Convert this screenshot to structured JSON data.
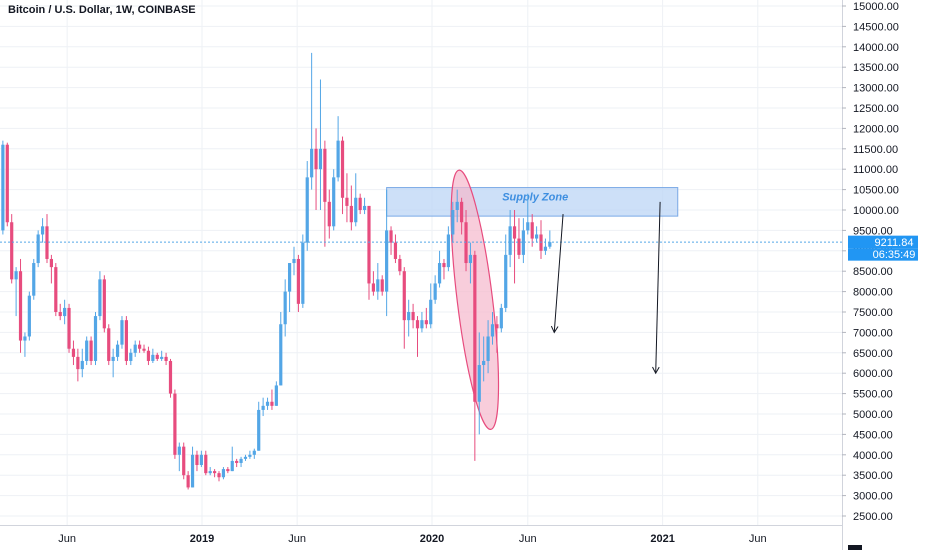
{
  "header": {
    "title": "Bitcoin / U.S. Dollar, 1W, COINBASE"
  },
  "price_axis": {
    "labels": [
      "15000.00",
      "14500.00",
      "14000.00",
      "13500.00",
      "13000.00",
      "12500.00",
      "12000.00",
      "11500.00",
      "11000.00",
      "10500.00",
      "10000.00",
      "9500.00",
      "9000.00",
      "8500.00",
      "8000.00",
      "7500.00",
      "7000.00",
      "6500.00",
      "6000.00",
      "5500.00",
      "5000.00",
      "4500.00",
      "4000.00",
      "3500.00",
      "3000.00",
      "2500.00"
    ],
    "last_price": "9211.84",
    "countdown": "06:35:49",
    "last_price_color": "#2196f3"
  },
  "time_axis": {
    "labels": [
      "Jun",
      "2019",
      "Jun",
      "2020",
      "Jun",
      "2021",
      "Jun"
    ]
  },
  "annotations": {
    "supply_zone_label": "Supply Zone"
  },
  "colors": {
    "up": "#53a6e6",
    "down": "#e74c7e",
    "zone": "#bcd6f5",
    "ellipse": "#f5b8cc"
  },
  "chart_data": {
    "type": "candlestick",
    "title": "Bitcoin / U.S. Dollar, 1W, COINBASE",
    "ylim": [
      2150,
      15100
    ],
    "y_ticks": [
      2500,
      3000,
      3500,
      4000,
      4500,
      5000,
      5500,
      6000,
      6500,
      7000,
      7500,
      8000,
      8500,
      9000,
      9500,
      10000,
      10500,
      11000,
      11500,
      12000,
      12500,
      13000,
      13500,
      14000,
      14500,
      15000
    ],
    "x_ticks": [
      {
        "label": "Jun",
        "date": "2018-06"
      },
      {
        "label": "2019",
        "date": "2019-01"
      },
      {
        "label": "Jun",
        "date": "2019-06"
      },
      {
        "label": "2020",
        "date": "2020-01"
      },
      {
        "label": "Jun",
        "date": "2020-06"
      },
      {
        "label": "2021",
        "date": "2021-01"
      },
      {
        "label": "Jun",
        "date": "2021-06"
      }
    ],
    "last_price": 9211.84,
    "supply_zone": {
      "from": "2019-10-21",
      "to": "2021-01-25",
      "low": 9850,
      "high": 10550,
      "label": "Supply Zone"
    },
    "highlight_ellipse": {
      "center_date": "2020-03-09",
      "center_price": 7000,
      "from_date": "2020-02-10",
      "to_date": "2020-04-06",
      "high": 11000,
      "low": 4600
    },
    "projections": [
      {
        "from_date": "2020-07-27",
        "from_price": 9900,
        "to_date": "2020-07-13",
        "to_price": 7000
      },
      {
        "from_date": "2020-12-28",
        "from_price": 10200,
        "to_date": "2020-12-21",
        "to_price": 6000
      }
    ],
    "candles": [
      {
        "date": "2018-02-19",
        "open": 9500,
        "high": 11700,
        "low": 9400,
        "close": 11600
      },
      {
        "date": "2018-02-26",
        "open": 11600,
        "high": 11650,
        "low": 9600,
        "close": 9700
      },
      {
        "date": "2018-03-05",
        "open": 9700,
        "high": 9900,
        "low": 8200,
        "close": 8300
      },
      {
        "date": "2018-03-12",
        "open": 8300,
        "high": 8600,
        "low": 7400,
        "close": 8500
      },
      {
        "date": "2018-03-19",
        "open": 8500,
        "high": 8800,
        "low": 6500,
        "close": 6800
      },
      {
        "date": "2018-03-26",
        "open": 6800,
        "high": 7000,
        "low": 6400,
        "close": 6900
      },
      {
        "date": "2018-04-02",
        "open": 6900,
        "high": 8000,
        "low": 6800,
        "close": 7900
      },
      {
        "date": "2018-04-09",
        "open": 7900,
        "high": 8800,
        "low": 7800,
        "close": 8700
      },
      {
        "date": "2018-04-16",
        "open": 8700,
        "high": 9500,
        "low": 8600,
        "close": 9400
      },
      {
        "date": "2018-04-23",
        "open": 9400,
        "high": 9800,
        "low": 9200,
        "close": 9600
      },
      {
        "date": "2018-04-30",
        "open": 9600,
        "high": 9900,
        "low": 8700,
        "close": 8800
      },
      {
        "date": "2018-05-07",
        "open": 8800,
        "high": 8900,
        "low": 8200,
        "close": 8600
      },
      {
        "date": "2018-05-14",
        "open": 8600,
        "high": 8700,
        "low": 7400,
        "close": 7500
      },
      {
        "date": "2018-05-21",
        "open": 7500,
        "high": 7700,
        "low": 7300,
        "close": 7400
      },
      {
        "date": "2018-05-28",
        "open": 7400,
        "high": 7800,
        "low": 7200,
        "close": 7600
      },
      {
        "date": "2018-06-04",
        "open": 7600,
        "high": 7700,
        "low": 6500,
        "close": 6600
      },
      {
        "date": "2018-06-11",
        "open": 6600,
        "high": 6800,
        "low": 6200,
        "close": 6400
      },
      {
        "date": "2018-06-18",
        "open": 6400,
        "high": 6600,
        "low": 5800,
        "close": 6100
      },
      {
        "date": "2018-06-25",
        "open": 6100,
        "high": 6600,
        "low": 5900,
        "close": 6300
      },
      {
        "date": "2018-07-02",
        "open": 6300,
        "high": 6900,
        "low": 6200,
        "close": 6800
      },
      {
        "date": "2018-07-09",
        "open": 6800,
        "high": 6900,
        "low": 6200,
        "close": 6300
      },
      {
        "date": "2018-07-16",
        "open": 6300,
        "high": 7500,
        "low": 6200,
        "close": 7400
      },
      {
        "date": "2018-07-23",
        "open": 7400,
        "high": 8500,
        "low": 7300,
        "close": 8300
      },
      {
        "date": "2018-07-30",
        "open": 8300,
        "high": 8400,
        "low": 7000,
        "close": 7100
      },
      {
        "date": "2018-08-06",
        "open": 7100,
        "high": 7200,
        "low": 6200,
        "close": 6300
      },
      {
        "date": "2018-08-13",
        "open": 6300,
        "high": 6600,
        "low": 5900,
        "close": 6400
      },
      {
        "date": "2018-08-20",
        "open": 6400,
        "high": 6800,
        "low": 6300,
        "close": 6700
      },
      {
        "date": "2018-08-27",
        "open": 6700,
        "high": 7400,
        "low": 6600,
        "close": 7300
      },
      {
        "date": "2018-09-03",
        "open": 7300,
        "high": 7400,
        "low": 6200,
        "close": 6300
      },
      {
        "date": "2018-09-10",
        "open": 6300,
        "high": 6600,
        "low": 6200,
        "close": 6500
      },
      {
        "date": "2018-09-17",
        "open": 6500,
        "high": 6800,
        "low": 6400,
        "close": 6700
      },
      {
        "date": "2018-09-24",
        "open": 6700,
        "high": 6800,
        "low": 6500,
        "close": 6600
      },
      {
        "date": "2018-10-01",
        "open": 6600,
        "high": 6700,
        "low": 6500,
        "close": 6550
      },
      {
        "date": "2018-10-08",
        "open": 6550,
        "high": 6650,
        "low": 6200,
        "close": 6300
      },
      {
        "date": "2018-10-15",
        "open": 6300,
        "high": 6600,
        "low": 6250,
        "close": 6450
      },
      {
        "date": "2018-10-22",
        "open": 6450,
        "high": 6500,
        "low": 6300,
        "close": 6350
      },
      {
        "date": "2018-10-29",
        "open": 6350,
        "high": 6550,
        "low": 6300,
        "close": 6400
      },
      {
        "date": "2018-11-05",
        "open": 6400,
        "high": 6500,
        "low": 6200,
        "close": 6300
      },
      {
        "date": "2018-11-12",
        "open": 6300,
        "high": 6350,
        "low": 5400,
        "close": 5500
      },
      {
        "date": "2018-11-19",
        "open": 5500,
        "high": 5600,
        "low": 3900,
        "close": 4000
      },
      {
        "date": "2018-11-26",
        "open": 4000,
        "high": 4300,
        "low": 3600,
        "close": 4200
      },
      {
        "date": "2018-12-03",
        "open": 4200,
        "high": 4300,
        "low": 3400,
        "close": 3500
      },
      {
        "date": "2018-12-10",
        "open": 3500,
        "high": 3600,
        "low": 3150,
        "close": 3200
      },
      {
        "date": "2018-12-17",
        "open": 3200,
        "high": 4200,
        "low": 3200,
        "close": 4000
      },
      {
        "date": "2018-12-24",
        "open": 4000,
        "high": 4100,
        "low": 3600,
        "close": 3750
      },
      {
        "date": "2018-12-31",
        "open": 3750,
        "high": 4100,
        "low": 3700,
        "close": 4000
      },
      {
        "date": "2019-01-07",
        "open": 4000,
        "high": 4100,
        "low": 3500,
        "close": 3550
      },
      {
        "date": "2019-01-14",
        "open": 3550,
        "high": 3700,
        "low": 3500,
        "close": 3600
      },
      {
        "date": "2019-01-21",
        "open": 3600,
        "high": 3650,
        "low": 3450,
        "close": 3550
      },
      {
        "date": "2019-01-28",
        "open": 3550,
        "high": 3600,
        "low": 3350,
        "close": 3450
      },
      {
        "date": "2019-02-04",
        "open": 3450,
        "high": 3700,
        "low": 3400,
        "close": 3650
      },
      {
        "date": "2019-02-11",
        "open": 3650,
        "high": 3700,
        "low": 3550,
        "close": 3600
      },
      {
        "date": "2019-02-18",
        "open": 3600,
        "high": 4200,
        "low": 3600,
        "close": 3850
      },
      {
        "date": "2019-02-25",
        "open": 3850,
        "high": 3900,
        "low": 3700,
        "close": 3800
      },
      {
        "date": "2019-03-04",
        "open": 3800,
        "high": 3950,
        "low": 3700,
        "close": 3900
      },
      {
        "date": "2019-03-11",
        "open": 3900,
        "high": 4000,
        "low": 3850,
        "close": 3950
      },
      {
        "date": "2019-03-18",
        "open": 3950,
        "high": 4100,
        "low": 3900,
        "close": 4000
      },
      {
        "date": "2019-03-25",
        "open": 4000,
        "high": 4150,
        "low": 3900,
        "close": 4100
      },
      {
        "date": "2019-04-01",
        "open": 4100,
        "high": 5300,
        "low": 4100,
        "close": 5100
      },
      {
        "date": "2019-04-08",
        "open": 5100,
        "high": 5400,
        "low": 4950,
        "close": 5200
      },
      {
        "date": "2019-04-15",
        "open": 5200,
        "high": 5400,
        "low": 5100,
        "close": 5300
      },
      {
        "date": "2019-04-22",
        "open": 5300,
        "high": 5600,
        "low": 5100,
        "close": 5200
      },
      {
        "date": "2019-04-29",
        "open": 5200,
        "high": 5800,
        "low": 5200,
        "close": 5700
      },
      {
        "date": "2019-05-06",
        "open": 5700,
        "high": 7500,
        "low": 5700,
        "close": 7200
      },
      {
        "date": "2019-05-13",
        "open": 7200,
        "high": 8300,
        "low": 6900,
        "close": 8000
      },
      {
        "date": "2019-05-20",
        "open": 8000,
        "high": 8700,
        "low": 7500,
        "close": 8700
      },
      {
        "date": "2019-05-27",
        "open": 8700,
        "high": 9100,
        "low": 8400,
        "close": 8800
      },
      {
        "date": "2019-06-03",
        "open": 8800,
        "high": 8900,
        "low": 7500,
        "close": 7700
      },
      {
        "date": "2019-06-10",
        "open": 7700,
        "high": 9400,
        "low": 7600,
        "close": 9200
      },
      {
        "date": "2019-06-17",
        "open": 9200,
        "high": 11200,
        "low": 9000,
        "close": 10800
      },
      {
        "date": "2019-06-24",
        "open": 10800,
        "high": 13850,
        "low": 10500,
        "close": 11500
      },
      {
        "date": "2019-07-01",
        "open": 11500,
        "high": 12000,
        "low": 10000,
        "close": 11000
      },
      {
        "date": "2019-07-08",
        "open": 11000,
        "high": 13200,
        "low": 10000,
        "close": 11500
      },
      {
        "date": "2019-07-15",
        "open": 11500,
        "high": 11700,
        "low": 9100,
        "close": 10200
      },
      {
        "date": "2019-07-22",
        "open": 10200,
        "high": 10500,
        "low": 9300,
        "close": 9600
      },
      {
        "date": "2019-07-29",
        "open": 9600,
        "high": 11000,
        "low": 9500,
        "close": 10800
      },
      {
        "date": "2019-08-05",
        "open": 10800,
        "high": 12300,
        "low": 10700,
        "close": 11700
      },
      {
        "date": "2019-08-12",
        "open": 11700,
        "high": 11800,
        "low": 9900,
        "close": 10300
      },
      {
        "date": "2019-08-19",
        "open": 10300,
        "high": 10900,
        "low": 9700,
        "close": 10100
      },
      {
        "date": "2019-08-26",
        "open": 10100,
        "high": 10600,
        "low": 9500,
        "close": 9700
      },
      {
        "date": "2019-09-02",
        "open": 9700,
        "high": 10900,
        "low": 9600,
        "close": 10300
      },
      {
        "date": "2019-09-09",
        "open": 10300,
        "high": 10400,
        "low": 9900,
        "close": 10000
      },
      {
        "date": "2019-09-16",
        "open": 10000,
        "high": 10300,
        "low": 9900,
        "close": 10100
      },
      {
        "date": "2019-09-23",
        "open": 10100,
        "high": 10100,
        "low": 7800,
        "close": 8200
      },
      {
        "date": "2019-09-30",
        "open": 8200,
        "high": 8500,
        "low": 7900,
        "close": 8000
      },
      {
        "date": "2019-10-07",
        "open": 8000,
        "high": 8700,
        "low": 7800,
        "close": 8300
      },
      {
        "date": "2019-10-14",
        "open": 8300,
        "high": 8400,
        "low": 7900,
        "close": 8000
      },
      {
        "date": "2019-10-21",
        "open": 8000,
        "high": 10500,
        "low": 7400,
        "close": 9500
      },
      {
        "date": "2019-10-28",
        "open": 9500,
        "high": 9600,
        "low": 8900,
        "close": 9200
      },
      {
        "date": "2019-11-04",
        "open": 9200,
        "high": 9400,
        "low": 8700,
        "close": 8800
      },
      {
        "date": "2019-11-11",
        "open": 8800,
        "high": 8900,
        "low": 8400,
        "close": 8500
      },
      {
        "date": "2019-11-18",
        "open": 8500,
        "high": 8600,
        "low": 6600,
        "close": 7300
      },
      {
        "date": "2019-11-25",
        "open": 7300,
        "high": 7800,
        "low": 6900,
        "close": 7500
      },
      {
        "date": "2019-12-02",
        "open": 7500,
        "high": 7700,
        "low": 7100,
        "close": 7300
      },
      {
        "date": "2019-12-09",
        "open": 7300,
        "high": 7400,
        "low": 6400,
        "close": 7100
      },
      {
        "date": "2019-12-16",
        "open": 7100,
        "high": 7500,
        "low": 7000,
        "close": 7300
      },
      {
        "date": "2019-12-23",
        "open": 7300,
        "high": 7600,
        "low": 7100,
        "close": 7200
      },
      {
        "date": "2019-12-30",
        "open": 7200,
        "high": 8200,
        "low": 7100,
        "close": 7800
      },
      {
        "date": "2020-01-06",
        "open": 7800,
        "high": 8400,
        "low": 7700,
        "close": 8200
      },
      {
        "date": "2020-01-13",
        "open": 8200,
        "high": 9000,
        "low": 8100,
        "close": 8700
      },
      {
        "date": "2020-01-20",
        "open": 8700,
        "high": 8800,
        "low": 8300,
        "close": 8600
      },
      {
        "date": "2020-01-27",
        "open": 8600,
        "high": 9600,
        "low": 8500,
        "close": 9400
      },
      {
        "date": "2020-02-03",
        "open": 9400,
        "high": 10200,
        "low": 9200,
        "close": 10000
      },
      {
        "date": "2020-02-10",
        "open": 10000,
        "high": 10500,
        "low": 9700,
        "close": 10200
      },
      {
        "date": "2020-02-17",
        "open": 10200,
        "high": 10300,
        "low": 9400,
        "close": 9700
      },
      {
        "date": "2020-02-24",
        "open": 9700,
        "high": 10000,
        "low": 8500,
        "close": 8700
      },
      {
        "date": "2020-03-02",
        "open": 8700,
        "high": 9200,
        "low": 8200,
        "close": 8900
      },
      {
        "date": "2020-03-09",
        "open": 8900,
        "high": 9000,
        "low": 3850,
        "close": 5300
      },
      {
        "date": "2020-03-16",
        "open": 5300,
        "high": 7000,
        "low": 4500,
        "close": 6200
      },
      {
        "date": "2020-03-23",
        "open": 6200,
        "high": 6900,
        "low": 5800,
        "close": 6300
      },
      {
        "date": "2020-03-30",
        "open": 6300,
        "high": 7300,
        "low": 6000,
        "close": 6900
      },
      {
        "date": "2020-04-06",
        "open": 6900,
        "high": 7500,
        "low": 6700,
        "close": 7200
      },
      {
        "date": "2020-04-13",
        "open": 7200,
        "high": 7400,
        "low": 6500,
        "close": 7100
      },
      {
        "date": "2020-04-20",
        "open": 7100,
        "high": 7700,
        "low": 7000,
        "close": 7600
      },
      {
        "date": "2020-04-27",
        "open": 7600,
        "high": 9400,
        "low": 7500,
        "close": 8900
      },
      {
        "date": "2020-05-04",
        "open": 8900,
        "high": 10000,
        "low": 8600,
        "close": 9600
      },
      {
        "date": "2020-05-11",
        "open": 9600,
        "high": 10000,
        "low": 8200,
        "close": 9300
      },
      {
        "date": "2020-05-18",
        "open": 9300,
        "high": 9800,
        "low": 8800,
        "close": 8900
      },
      {
        "date": "2020-05-25",
        "open": 8900,
        "high": 9800,
        "low": 8700,
        "close": 9500
      },
      {
        "date": "2020-06-01",
        "open": 9500,
        "high": 10400,
        "low": 9400,
        "close": 9700
      },
      {
        "date": "2020-06-08",
        "open": 9700,
        "high": 9900,
        "low": 9100,
        "close": 9300
      },
      {
        "date": "2020-06-15",
        "open": 9300,
        "high": 9600,
        "low": 9200,
        "close": 9400
      },
      {
        "date": "2020-06-22",
        "open": 9400,
        "high": 9750,
        "low": 8800,
        "close": 9000
      },
      {
        "date": "2020-06-29",
        "open": 9000,
        "high": 9300,
        "low": 8900,
        "close": 9100
      },
      {
        "date": "2020-07-06",
        "open": 9100,
        "high": 9500,
        "low": 9050,
        "close": 9211.84
      }
    ]
  }
}
